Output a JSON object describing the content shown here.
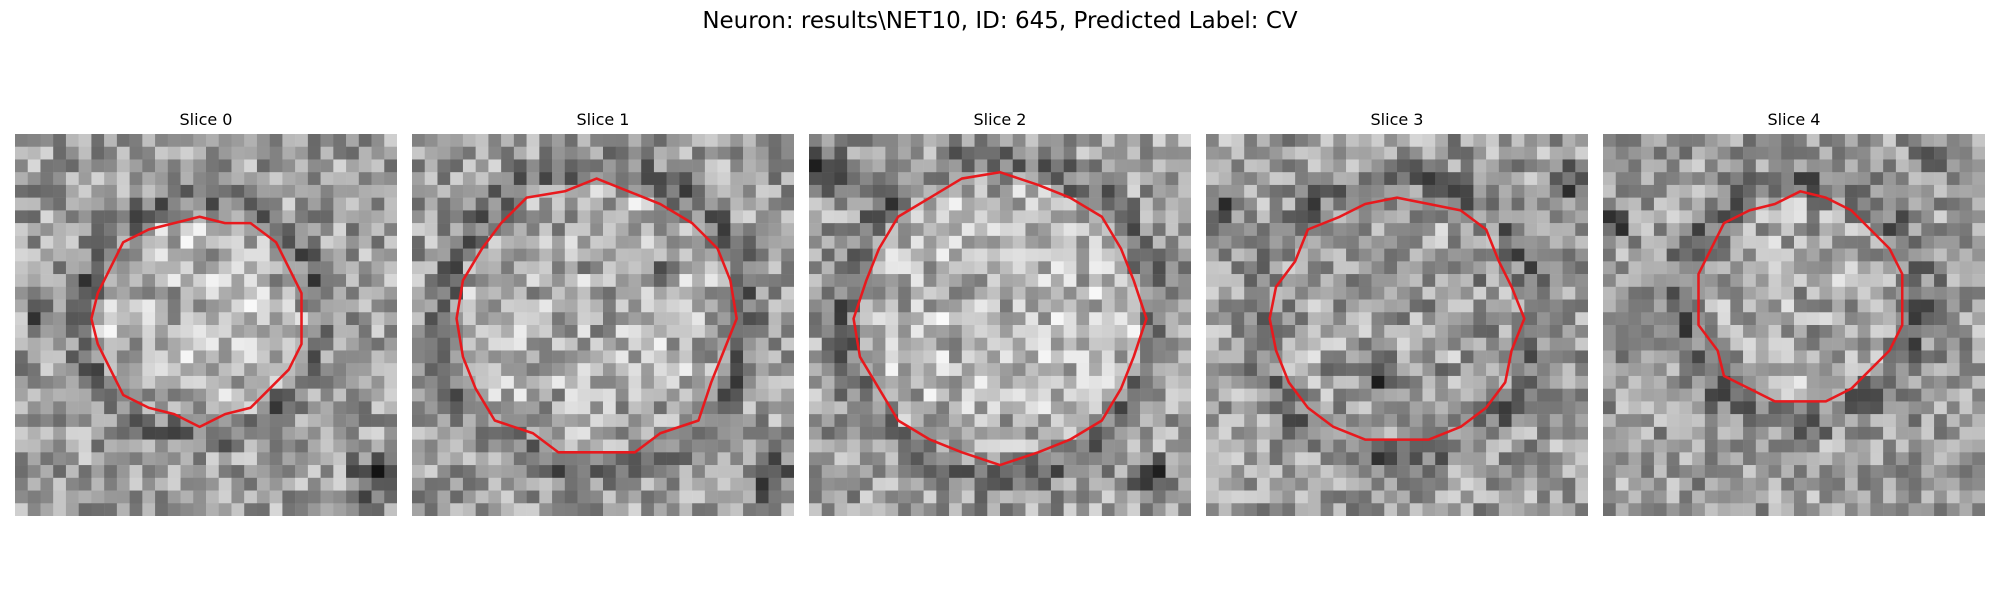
{
  "figure": {
    "title": "Neuron: results\\NET10, ID: 645, Predicted Label: CV"
  },
  "panels": [
    {
      "title": "Slice 0"
    },
    {
      "title": "Slice 1"
    },
    {
      "title": "Slice 2"
    },
    {
      "title": "Slice 3"
    },
    {
      "title": "Slice 4"
    }
  ],
  "contour_color": "#e8191d",
  "colormap": "grayscale",
  "grid_cells": 30
}
